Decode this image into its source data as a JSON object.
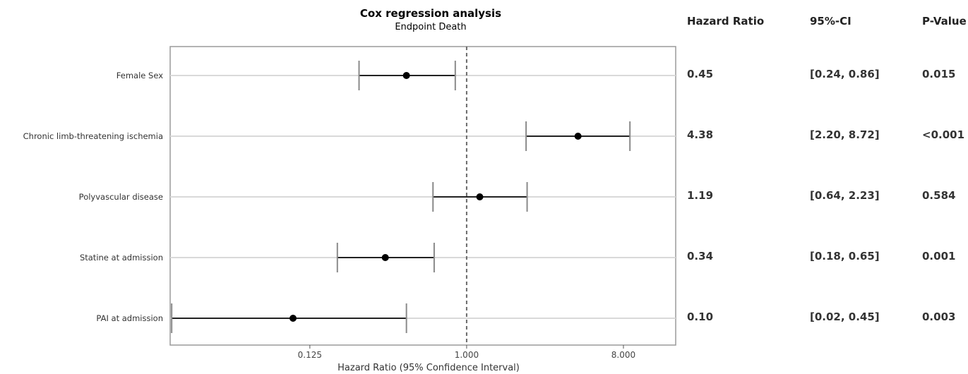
{
  "chart_data": {
    "type": "forest",
    "title": "Cox regression analysis",
    "subtitle": "Endpoint Death",
    "xlabel": "Hazard Ratio (95% Confidence Interval)",
    "x_scale": "log2",
    "xlim": [
      0.0196,
      16
    ],
    "x_ticks": [
      0.125,
      1.0,
      8.0
    ],
    "x_tick_labels": [
      "0.125",
      "1.000",
      "8.000"
    ],
    "reference_line": 1.0,
    "rows": [
      {
        "label": "Female Sex",
        "hr": 0.45,
        "ci_low": 0.24,
        "ci_high": 0.86,
        "hr_text": "0.45",
        "ci_text": "[0.24, 0.86]",
        "p_text": "0.015"
      },
      {
        "label": "Chronic limb-threatening ischemia",
        "hr": 4.38,
        "ci_low": 2.2,
        "ci_high": 8.72,
        "hr_text": "4.38",
        "ci_text": "[2.20, 8.72]",
        "p_text": "<0.001"
      },
      {
        "label": "Polyvascular disease",
        "hr": 1.19,
        "ci_low": 0.64,
        "ci_high": 2.23,
        "hr_text": "1.19",
        "ci_text": "[0.64, 2.23]",
        "p_text": "0.584"
      },
      {
        "label": "Statine at admission",
        "hr": 0.34,
        "ci_low": 0.18,
        "ci_high": 0.65,
        "hr_text": "0.34",
        "ci_text": "[0.18, 0.65]",
        "p_text": "0.001"
      },
      {
        "label": "PAI at admission",
        "hr": 0.1,
        "ci_low": 0.02,
        "ci_high": 0.45,
        "hr_text": "0.10",
        "ci_text": "[0.02, 0.45]",
        "p_text": "0.003"
      }
    ]
  },
  "columns": {
    "hr_header": "Hazard Ratio",
    "ci_header": "95%-CI",
    "p_header": "P-Value"
  }
}
